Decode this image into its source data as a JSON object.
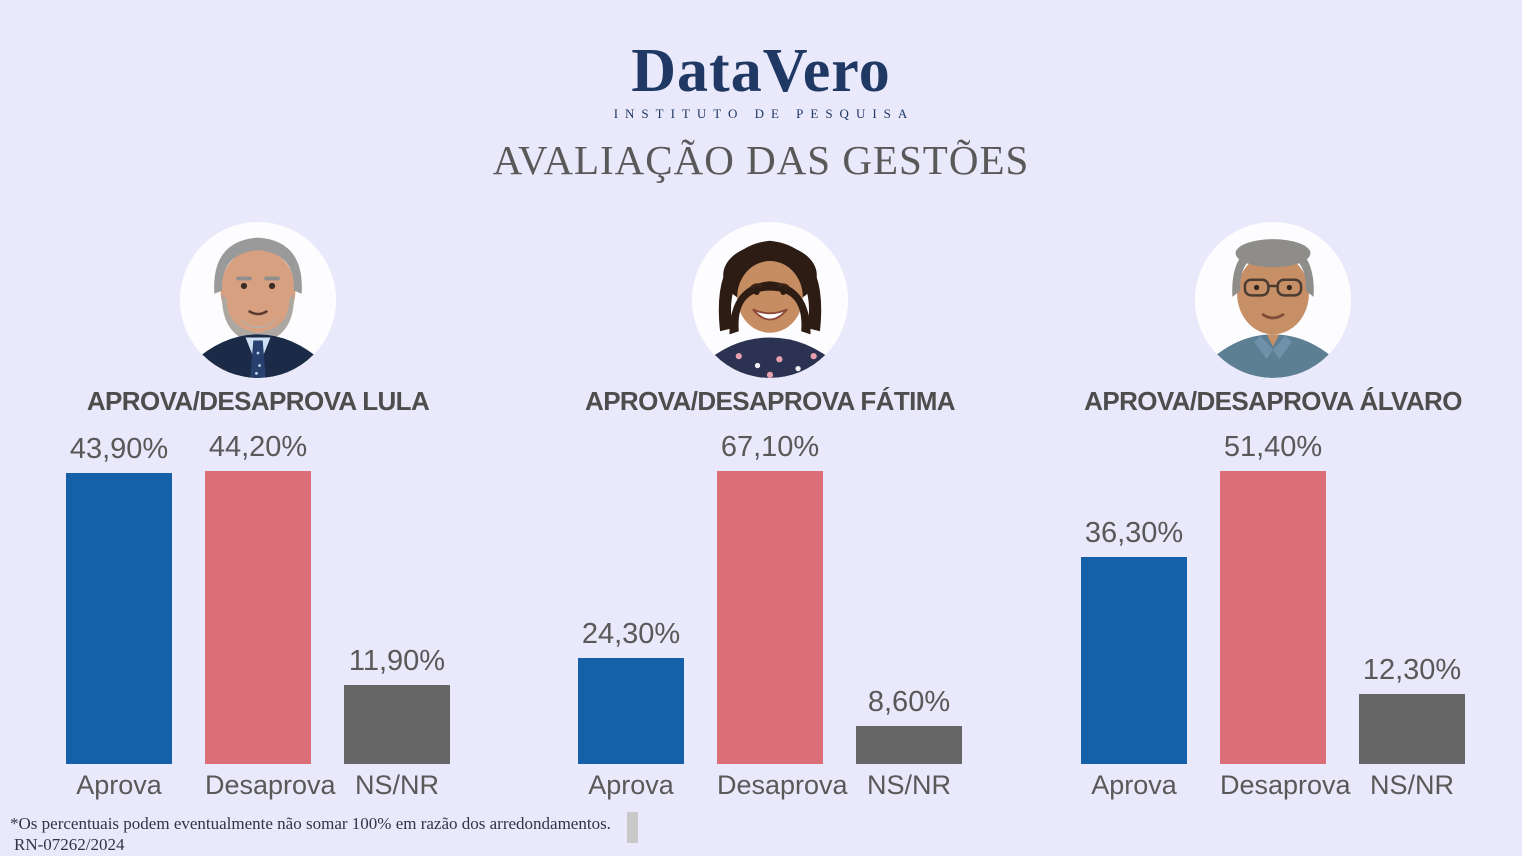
{
  "header": {
    "logo_name": "DataVero",
    "logo_subtitle": "INSTITUTO DE PESQUISA",
    "page_title": "AVALIAÇÃO DAS GESTÕES"
  },
  "colors": {
    "background": "#E9E9FB",
    "logo_navy": "#1F3864",
    "aprova_blue": "#1560A8",
    "desaprova_red": "#DC6E78",
    "nsnr_gray": "#666666",
    "heading_gray": "#595959",
    "chart_title_gray": "#4D4D4D"
  },
  "chart_data": [
    {
      "type": "bar",
      "title": "APROVA/DESAPROVA LULA",
      "person": "Lula",
      "categories": [
        "Aprova",
        "Desaprova",
        "NS/NR"
      ],
      "values": [
        43.9,
        44.2,
        11.9
      ],
      "value_labels": [
        "43,90%",
        "44,20%",
        "11,90%"
      ],
      "colors": [
        "#1560A8",
        "#DC6E78",
        "#666666"
      ],
      "ylim": [
        0,
        44.2
      ],
      "grid": false,
      "legend": false
    },
    {
      "type": "bar",
      "title": "APROVA/DESAPROVA FÁTIMA",
      "person": "Fátima",
      "categories": [
        "Aprova",
        "Desaprova",
        "NS/NR"
      ],
      "values": [
        24.3,
        67.1,
        8.6
      ],
      "value_labels": [
        "24,30%",
        "67,10%",
        "8,60%"
      ],
      "colors": [
        "#1560A8",
        "#DC6E78",
        "#666666"
      ],
      "ylim": [
        0,
        67.1
      ],
      "grid": false,
      "legend": false
    },
    {
      "type": "bar",
      "title": "APROVA/DESAPROVA ÁLVARO",
      "person": "Álvaro",
      "categories": [
        "Aprova",
        "Desaprova",
        "NS/NR"
      ],
      "values": [
        36.3,
        51.4,
        12.3
      ],
      "value_labels": [
        "36,30%",
        "51,40%",
        "12,30%"
      ],
      "colors": [
        "#1560A8",
        "#DC6E78",
        "#666666"
      ],
      "ylim": [
        0,
        51.4
      ],
      "grid": false,
      "legend": false
    }
  ],
  "footnote": {
    "line1": "*Os percentuais podem eventualmente não somar 100% em razão dos arredondamentos.",
    "line2": "RN-07262/2024"
  }
}
